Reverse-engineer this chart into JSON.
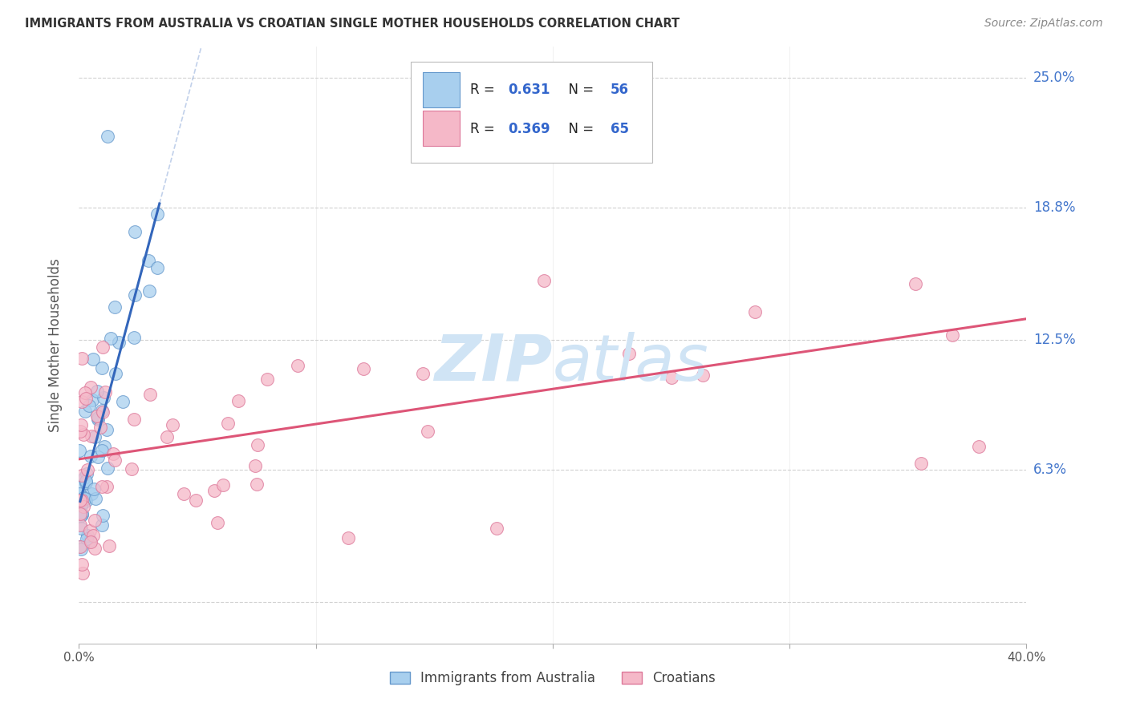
{
  "title": "IMMIGRANTS FROM AUSTRALIA VS CROATIAN SINGLE MOTHER HOUSEHOLDS CORRELATION CHART",
  "source": "Source: ZipAtlas.com",
  "ylabel": "Single Mother Households",
  "xlim": [
    0.0,
    0.4
  ],
  "ylim": [
    -0.02,
    0.265
  ],
  "ytick_positions": [
    0.0,
    0.063,
    0.125,
    0.188,
    0.25
  ],
  "ytick_labels": [
    "",
    "6.3%",
    "12.5%",
    "18.8%",
    "25.0%"
  ],
  "series1_name": "Immigrants from Australia",
  "series1_R": 0.631,
  "series1_N": 56,
  "series1_color": "#A8CFEE",
  "series1_edge_color": "#6699CC",
  "series1_trend_color": "#3366BB",
  "series2_name": "Croatians",
  "series2_R": 0.369,
  "series2_N": 65,
  "series2_color": "#F5B8C8",
  "series2_edge_color": "#DD7799",
  "series2_trend_color": "#DD5577",
  "background_color": "#ffffff",
  "grid_color": "#cccccc",
  "title_color": "#333333",
  "source_color": "#888888",
  "axis_label_color": "#555555",
  "right_label_color": "#4477CC",
  "legend_text_color": "#222222",
  "legend_val_color": "#3366CC",
  "watermark_color": "#D0E4F5"
}
